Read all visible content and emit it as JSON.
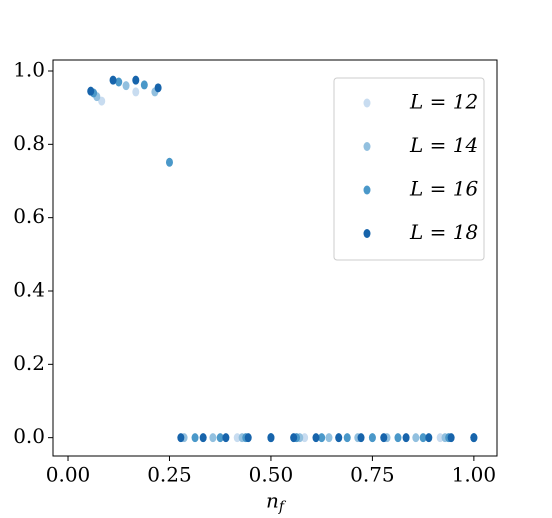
{
  "chart_data": {
    "type": "scatter",
    "xlabel": "n_f",
    "xlim": [
      -0.037,
      1.057
    ],
    "ylim": [
      -0.05,
      1.03
    ],
    "xticks": [
      {
        "value": 0,
        "label": "0.00"
      },
      {
        "value": 0.25,
        "label": "0.25"
      },
      {
        "value": 0.5,
        "label": "0.50"
      },
      {
        "value": 0.75,
        "label": "0.75"
      },
      {
        "value": 1,
        "label": "1.00"
      }
    ],
    "yticks": [
      {
        "value": 0,
        "label": "0.0"
      },
      {
        "value": 0.2,
        "label": "0.2"
      },
      {
        "value": 0.4,
        "label": "0.4"
      },
      {
        "value": 0.6,
        "label": "0.6"
      },
      {
        "value": 0.8,
        "label": "0.8"
      },
      {
        "value": 1,
        "label": "1.0"
      }
    ],
    "legend": "upper right",
    "series": [
      {
        "name": "L = 12",
        "color": "#c8dcf0",
        "x": [
          0.083,
          0.167,
          0.333,
          0.417,
          0.5,
          0.583,
          0.667,
          0.75,
          0.833,
          0.917,
          1.0
        ],
        "values": [
          0.918,
          0.943,
          0,
          0,
          0,
          0,
          0,
          0,
          0,
          0,
          0
        ]
      },
      {
        "name": "L = 14",
        "color": "#92c0df",
        "x": [
          0.071,
          0.143,
          0.214,
          0.286,
          0.357,
          0.429,
          0.5,
          0.571,
          0.643,
          0.714,
          0.786,
          0.857,
          0.929,
          1.0
        ],
        "values": [
          0.93,
          0.96,
          0.943,
          0,
          0,
          0,
          0,
          0,
          0,
          0,
          0,
          0,
          0,
          0
        ]
      },
      {
        "name": "L = 16",
        "color": "#4a98c9",
        "x": [
          0.063,
          0.125,
          0.188,
          0.25,
          0.313,
          0.375,
          0.438,
          0.5,
          0.563,
          0.625,
          0.688,
          0.75,
          0.813,
          0.875,
          0.938,
          1.0
        ],
        "values": [
          0.94,
          0.97,
          0.962,
          0.751,
          0,
          0,
          0,
          0,
          0,
          0,
          0,
          0,
          0,
          0,
          0,
          0
        ]
      },
      {
        "name": "L = 18",
        "color": "#1764ab",
        "x": [
          0.056,
          0.111,
          0.167,
          0.222,
          0.278,
          0.333,
          0.389,
          0.444,
          0.5,
          0.556,
          0.611,
          0.667,
          0.722,
          0.778,
          0.833,
          0.889,
          0.944,
          1.0
        ],
        "values": [
          0.945,
          0.975,
          0.975,
          0.954,
          0,
          0,
          0,
          0,
          0,
          0,
          0,
          0,
          0,
          0,
          0,
          0,
          0,
          0
        ]
      }
    ]
  }
}
